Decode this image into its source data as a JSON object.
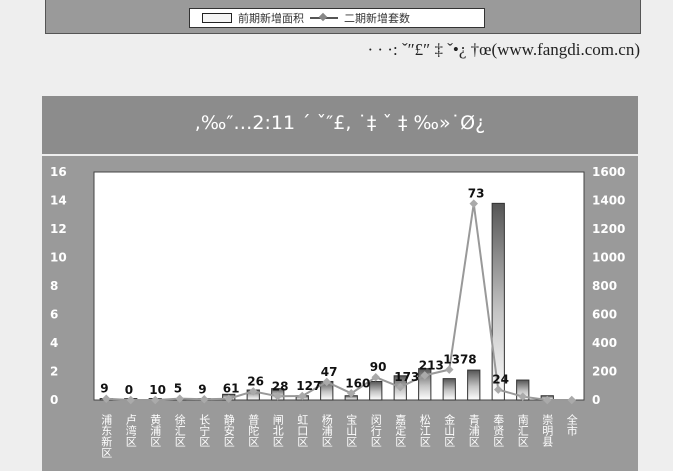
{
  "top_legend": {
    "bar_label": "前期新增面积",
    "line_label": "二期新增套数"
  },
  "source_text": "·  · ·:  ˇ″£″ ‡  ˇ•¿   †œ(www.fangdi.com.cn)",
  "chart_title": ",‰″…2:11  ´  ˇ″£,  ˙‡  ˇ  ‡  ‰»˙Ø¿",
  "chart_data": {
    "type": "bar",
    "title": ",‰″…2:11  ´  ˇ″£,  ˙‡  ˇ  ‡  ‰»˙Ø¿",
    "ylim_left": [
      0,
      16
    ],
    "ylim_right": [
      0,
      1600
    ],
    "left_ticks": [
      "16",
      "14",
      "12",
      "10",
      "8",
      "6",
      "4",
      "2",
      "0"
    ],
    "right_ticks": [
      "1600",
      "1400",
      "1200",
      "1000",
      "800",
      "600",
      "400",
      "200",
      "0"
    ],
    "categories": [
      "浦东新区",
      "卢湾区",
      "黄浦区",
      "徐汇区",
      "长宁区",
      "静安区",
      "普陀区",
      "闸北区",
      "虹口区",
      "杨浦区",
      "宝山区",
      "闵行区",
      "嘉定区",
      "松江区",
      "金山区",
      "青浦区",
      "奉贤区",
      "南汇区",
      "崇明县",
      "全市"
    ],
    "series": [
      {
        "values": [
          0.1,
          0.1,
          0.1,
          0.1,
          0.1,
          0.4,
          0.7,
          0.8,
          0.3,
          1.3,
          0.3,
          1.3,
          1.7,
          2.2,
          1.5,
          2.1,
          13.8,
          1.4,
          0.3,
          0
        ]
      },
      {
        "values": [
          9,
          0,
          0,
          10,
          5,
          9,
          61,
          26,
          28,
          127,
          47,
          160,
          90,
          173,
          213,
          1378,
          73,
          24,
          0,
          0
        ]
      }
    ],
    "data_labels": [
      {
        "text": "9"
      },
      {
        "text": "0"
      },
      {
        "text": "10"
      },
      {
        "text": "5"
      },
      {
        "text": "9"
      },
      {
        "text": "61"
      },
      {
        "text": "26"
      },
      {
        "text": "28"
      },
      {
        "text": "127"
      },
      {
        "text": "47"
      },
      {
        "text": "160"
      },
      {
        "text": "90"
      },
      {
        "text": "173"
      },
      {
        "text": "213"
      },
      {
        "text": "1378"
      },
      {
        "text": "73"
      },
      {
        "text": "24"
      }
    ]
  }
}
